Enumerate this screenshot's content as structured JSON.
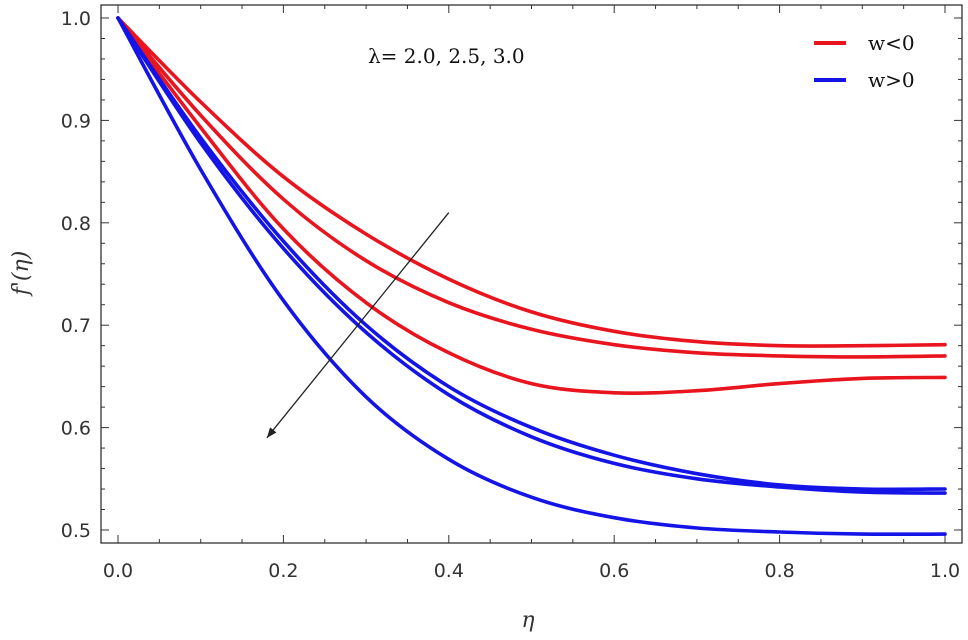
{
  "chart_data": {
    "type": "line",
    "title": "",
    "xlabel": "η",
    "ylabel": "f'(η)",
    "xlim": [
      0.0,
      1.0
    ],
    "ylim": [
      0.49,
      1.0
    ],
    "xticks": [
      "0.0",
      "0.2",
      "0.4",
      "0.6",
      "0.8",
      "1.0"
    ],
    "yticks": [
      "0.5",
      "0.6",
      "0.7",
      "0.8",
      "0.9",
      "1.0"
    ],
    "grid": false,
    "legend": {
      "placement": "top-right",
      "entries": [
        {
          "label": "w<0",
          "color": "#e8141e"
        },
        {
          "label": "w>0",
          "color": "#1414e6"
        }
      ]
    },
    "annotation": "λ= 2.0, 2.5, 3.0",
    "arrow": {
      "from": [
        0.4,
        0.81
      ],
      "to": [
        0.18,
        0.59
      ]
    },
    "x": [
      0.0,
      0.1,
      0.2,
      0.3,
      0.4,
      0.5,
      0.6,
      0.7,
      0.8,
      0.9,
      1.0
    ],
    "series": [
      {
        "group": "w<0",
        "color": "#e8141e",
        "values": [
          1.0,
          0.918,
          0.845,
          0.789,
          0.745,
          0.713,
          0.694,
          0.684,
          0.68,
          0.68,
          0.681
        ]
      },
      {
        "group": "w<0",
        "color": "#e8141e",
        "values": [
          1.0,
          0.905,
          0.823,
          0.763,
          0.722,
          0.696,
          0.681,
          0.673,
          0.67,
          0.669,
          0.67
        ]
      },
      {
        "group": "w<0",
        "color": "#e8141e",
        "values": [
          1.0,
          0.893,
          0.794,
          0.722,
          0.673,
          0.643,
          0.634,
          0.636,
          0.643,
          0.648,
          0.649
        ]
      },
      {
        "group": "w>0",
        "color": "#1414e6",
        "values": [
          1.0,
          0.883,
          0.782,
          0.7,
          0.64,
          0.6,
          0.573,
          0.555,
          0.544,
          0.54,
          0.54
        ]
      },
      {
        "group": "w>0",
        "color": "#1414e6",
        "values": [
          1.0,
          0.878,
          0.775,
          0.693,
          0.632,
          0.591,
          0.565,
          0.55,
          0.542,
          0.537,
          0.536
        ]
      },
      {
        "group": "w>0",
        "color": "#1414e6",
        "values": [
          1.0,
          0.852,
          0.724,
          0.63,
          0.569,
          0.532,
          0.512,
          0.502,
          0.498,
          0.496,
          0.496
        ]
      }
    ]
  }
}
